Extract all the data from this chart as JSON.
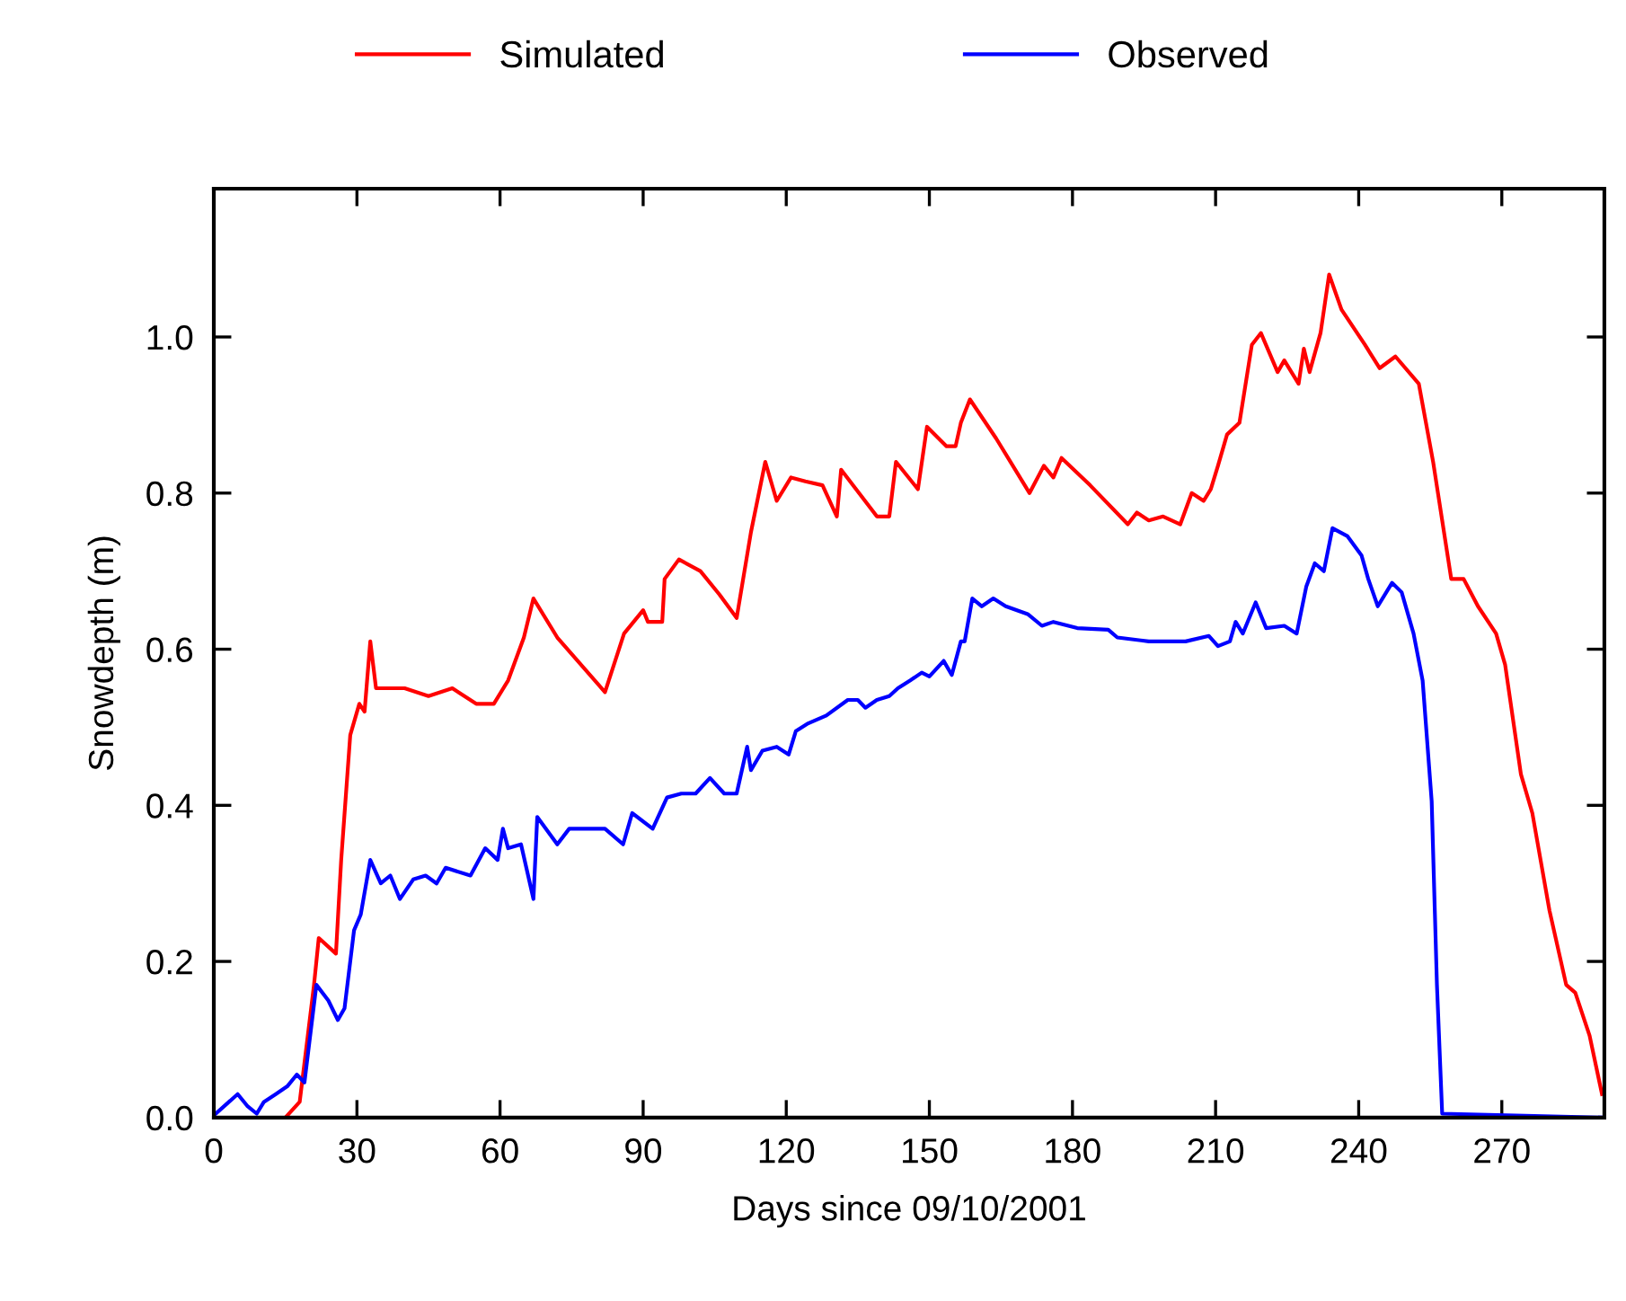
{
  "chart_data": {
    "type": "line",
    "xlabel": "Days since 09/10/2001",
    "ylabel": "Snowdepth (m)",
    "xlim": [
      0,
      291.5
    ],
    "ylim": [
      0,
      1.19
    ],
    "xticks": [
      0,
      30,
      60,
      90,
      120,
      150,
      180,
      210,
      240,
      270
    ],
    "yticks": [
      {
        "value": 0,
        "label": "0.0"
      },
      {
        "value": 0.2,
        "label": "0.2"
      },
      {
        "value": 0.4,
        "label": "0.4"
      },
      {
        "value": 0.6,
        "label": "0.6"
      },
      {
        "value": 0.8,
        "label": "0.8"
      },
      {
        "value": 1.0,
        "label": "1.0"
      }
    ],
    "grid": false,
    "legend": "top",
    "marker": "none",
    "line_style": "solid",
    "series": [
      {
        "name": "Simulated",
        "color": "#ff0000",
        "x": [
          15,
          18,
          21,
          22,
          25.6,
          26.7,
          28.6,
          30.5,
          31.6,
          32.8,
          34,
          40,
          45,
          50,
          55,
          58.7,
          61.7,
          65,
          67,
          72,
          82,
          86,
          90,
          91,
          94,
          94.5,
          97.5,
          102,
          106,
          109.6,
          112.6,
          115.6,
          118,
          121,
          124,
          127.6,
          130.6,
          131.5,
          139,
          141.6,
          143,
          147.6,
          149.5,
          153.6,
          155.5,
          156.6,
          158.5,
          164,
          171,
          174,
          176,
          177.7,
          183.7,
          191.6,
          193.5,
          196,
          199,
          202.6,
          205,
          207.5,
          209,
          210.5,
          212.4,
          215,
          217.6,
          219.5,
          223,
          224.4,
          227.4,
          228.5,
          229.7,
          232,
          233.8,
          236.4,
          241.3,
          244.4,
          247.7,
          252.6,
          255.6,
          259.4,
          262,
          265,
          268.8,
          270.7,
          274,
          276.4,
          280,
          283.5,
          285.4,
          288.4,
          291
        ],
        "values": [
          0,
          0.02,
          0.17,
          0.23,
          0.21,
          0.33,
          0.49,
          0.53,
          0.52,
          0.61,
          0.55,
          0.55,
          0.54,
          0.55,
          0.53,
          0.53,
          0.56,
          0.615,
          0.665,
          0.615,
          0.545,
          0.62,
          0.65,
          0.635,
          0.635,
          0.69,
          0.715,
          0.7,
          0.67,
          0.64,
          0.75,
          0.84,
          0.79,
          0.82,
          0.815,
          0.81,
          0.77,
          0.83,
          0.77,
          0.77,
          0.84,
          0.805,
          0.885,
          0.86,
          0.86,
          0.89,
          0.92,
          0.87,
          0.8,
          0.835,
          0.82,
          0.845,
          0.81,
          0.76,
          0.775,
          0.765,
          0.77,
          0.76,
          0.8,
          0.79,
          0.805,
          0.835,
          0.875,
          0.89,
          0.99,
          1.005,
          0.955,
          0.97,
          0.94,
          0.985,
          0.955,
          1.005,
          1.08,
          1.035,
          0.99,
          0.96,
          0.975,
          0.94,
          0.84,
          0.69,
          0.69,
          0.655,
          0.62,
          0.58,
          0.44,
          0.39,
          0.265,
          0.17,
          0.16,
          0.105,
          0.03
        ]
      },
      {
        "name": "Observed",
        "color": "#0000ff",
        "x": [
          0.4,
          5,
          7,
          9,
          10.5,
          13,
          15.4,
          17.4,
          19,
          21.5,
          24,
          26,
          27.4,
          29.4,
          30.8,
          32.8,
          35,
          37,
          39,
          41.8,
          44.4,
          46.7,
          48.6,
          53.8,
          56.9,
          59.5,
          60.6,
          61.7,
          64.4,
          67,
          67.8,
          72,
          74.5,
          82,
          85.8,
          87.7,
          92,
          95,
          98,
          101,
          104,
          107,
          109.6,
          110.7,
          111.8,
          112.6,
          115,
          118,
          120.5,
          122,
          124.6,
          128.4,
          132.9,
          135,
          136.6,
          139,
          141.6,
          143.4,
          146,
          148.4,
          150,
          153,
          154.7,
          156.6,
          157.4,
          159,
          161,
          163.4,
          166,
          170.6,
          173.6,
          176,
          181,
          187.5,
          189.4,
          196,
          203.7,
          208.6,
          210.5,
          213,
          214.2,
          215.7,
          218.4,
          220.6,
          224.4,
          227,
          229,
          230.8,
          232.7,
          234.5,
          237.6,
          240.6,
          242,
          244,
          247,
          249,
          251.5,
          253.4,
          255.3,
          256.4,
          257.5,
          291
        ],
        "values": [
          0.005,
          0.03,
          0.015,
          0.005,
          0.02,
          0.03,
          0.04,
          0.055,
          0.045,
          0.17,
          0.15,
          0.125,
          0.14,
          0.24,
          0.26,
          0.33,
          0.3,
          0.31,
          0.28,
          0.305,
          0.31,
          0.3,
          0.32,
          0.31,
          0.345,
          0.33,
          0.37,
          0.345,
          0.35,
          0.28,
          0.385,
          0.35,
          0.37,
          0.37,
          0.35,
          0.39,
          0.37,
          0.41,
          0.415,
          0.415,
          0.435,
          0.415,
          0.415,
          0.445,
          0.475,
          0.445,
          0.47,
          0.475,
          0.465,
          0.495,
          0.505,
          0.515,
          0.535,
          0.535,
          0.525,
          0.535,
          0.54,
          0.55,
          0.56,
          0.57,
          0.565,
          0.585,
          0.567,
          0.61,
          0.61,
          0.665,
          0.655,
          0.665,
          0.655,
          0.645,
          0.63,
          0.635,
          0.627,
          0.625,
          0.615,
          0.61,
          0.61,
          0.617,
          0.604,
          0.61,
          0.635,
          0.62,
          0.66,
          0.627,
          0.63,
          0.62,
          0.68,
          0.71,
          0.7,
          0.755,
          0.745,
          0.72,
          0.69,
          0.655,
          0.685,
          0.673,
          0.62,
          0.56,
          0.405,
          0.17,
          0.005,
          0
        ]
      }
    ]
  }
}
